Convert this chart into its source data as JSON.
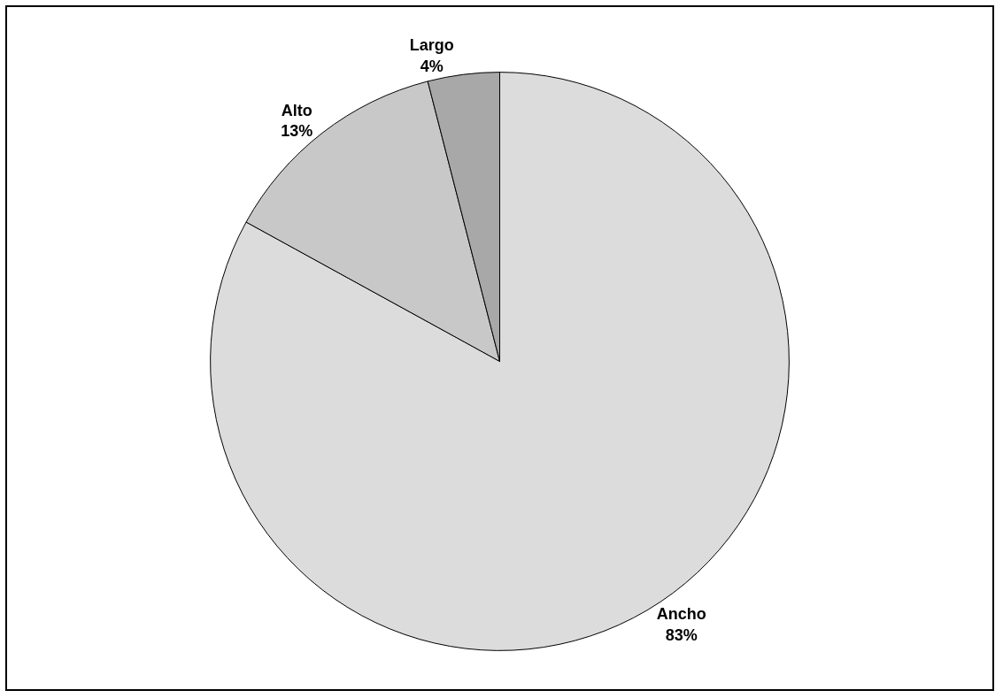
{
  "chart_data": {
    "type": "pie",
    "categories": [
      "Ancho",
      "Alto",
      "Largo"
    ],
    "values": [
      83,
      13,
      4
    ],
    "value_labels": [
      "83%",
      "13%",
      "4%"
    ],
    "colors": [
      "#dcdcdc",
      "#c8c8c8",
      "#a8a8a8"
    ]
  }
}
